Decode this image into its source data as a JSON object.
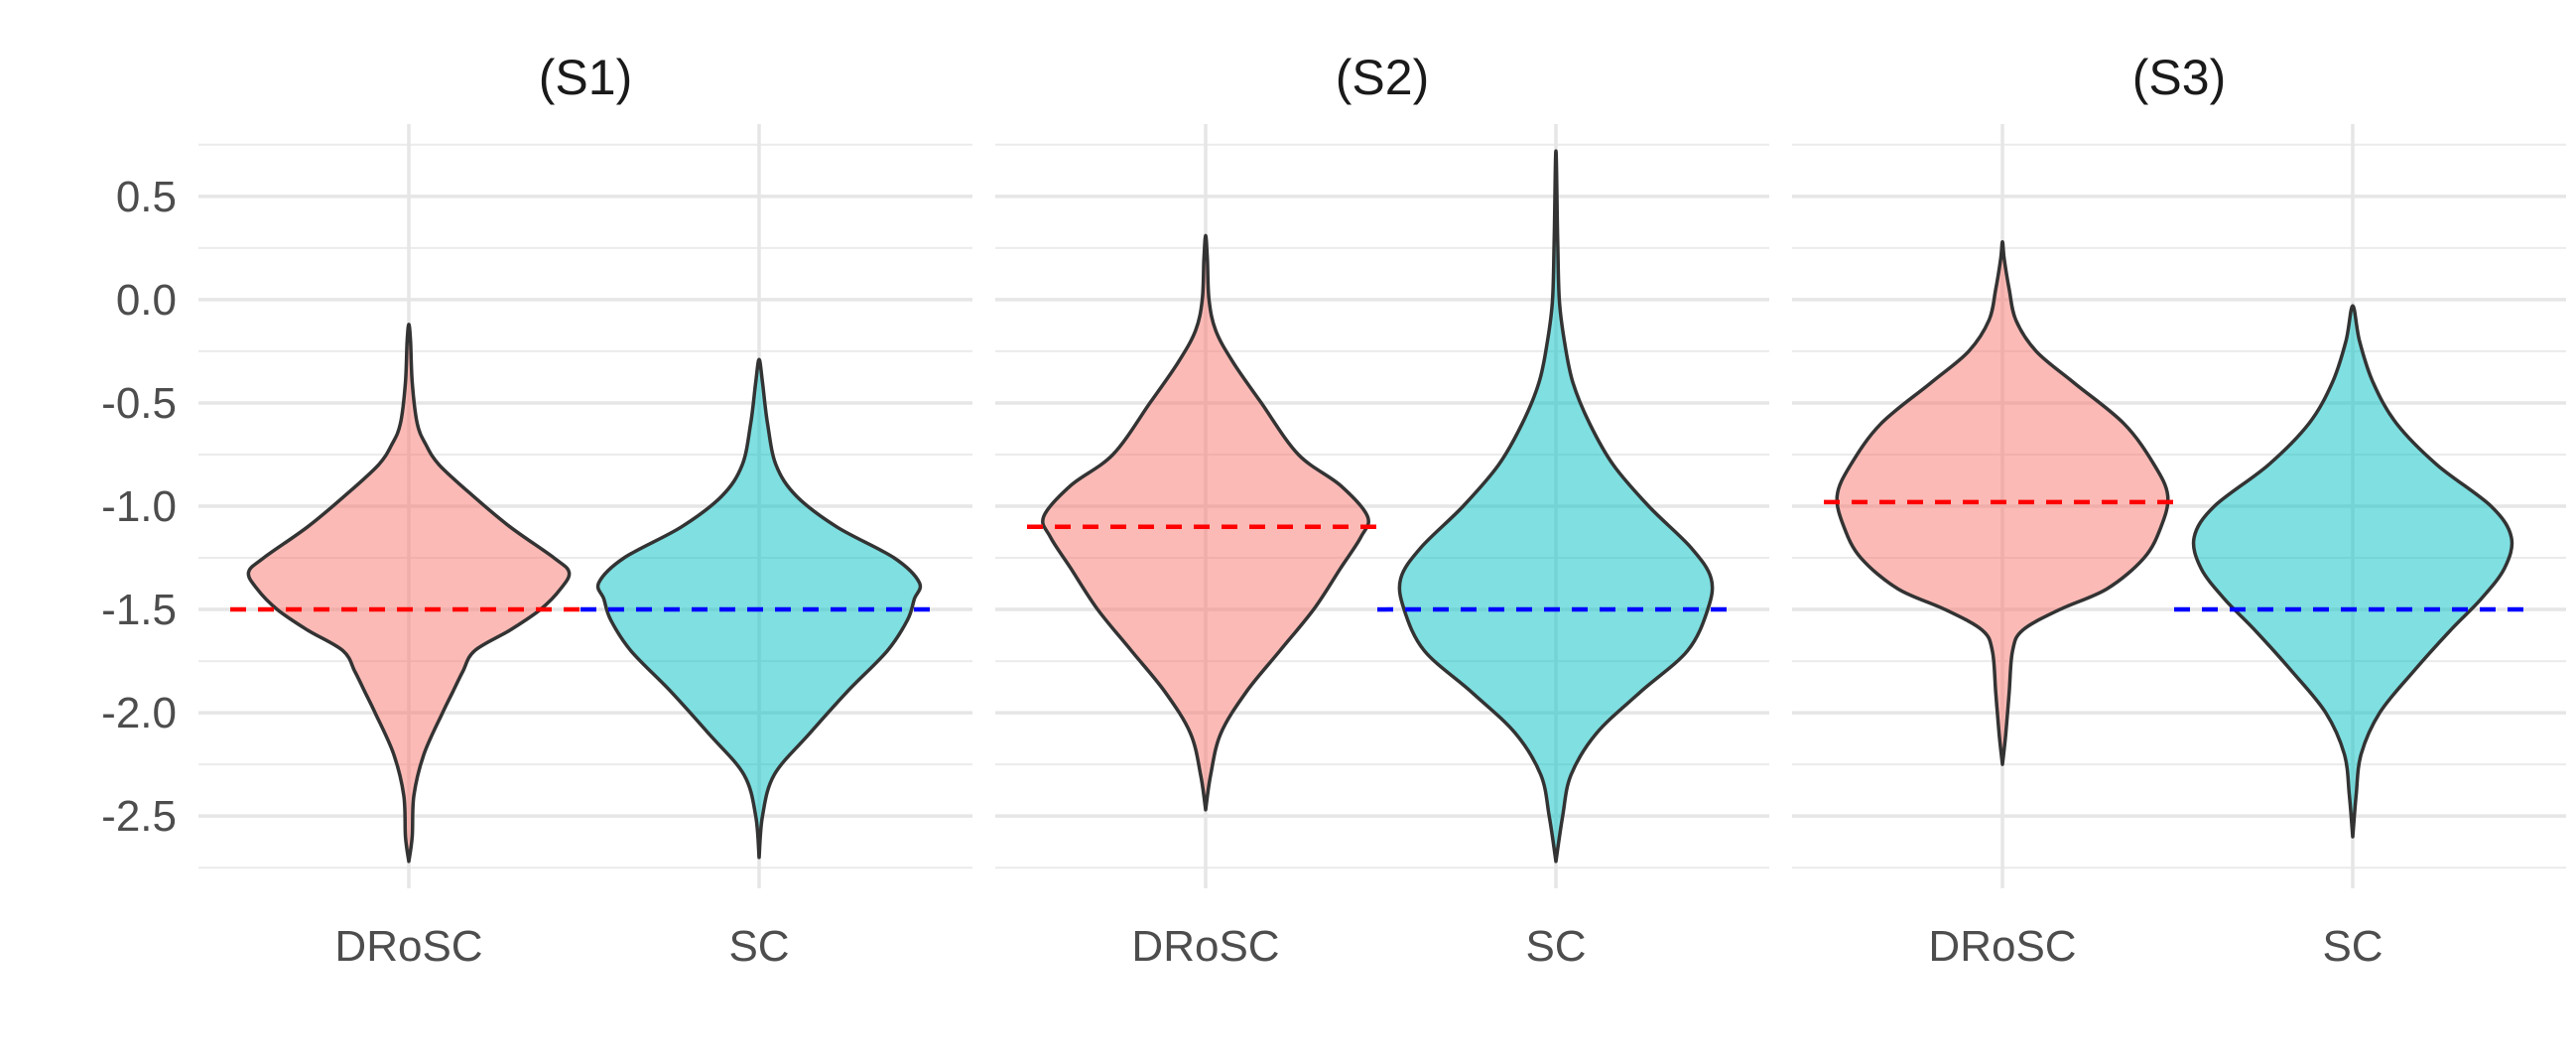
{
  "chart_data": {
    "type": "violin",
    "ylim": [
      -2.85,
      0.85
    ],
    "y_ticks": [
      0.5,
      0.0,
      -0.5,
      -1.0,
      -1.5,
      -2.0,
      -2.5
    ],
    "y_tick_labels": [
      "0.5",
      "0.0",
      "-0.5",
      "-1.0",
      "-1.5",
      "-2.0",
      "-2.5"
    ],
    "grid": true,
    "categories": [
      "DRoSC",
      "SC"
    ],
    "colors": {
      "DRoSC_fill": "#F8766D",
      "SC_fill": "#00BFC4",
      "DRoSC_ref_line": "#ff0000",
      "SC_ref_line": "#0000ff",
      "outline": "#333333"
    },
    "panels": [
      {
        "title": "(S1)",
        "violins": [
          {
            "category": "DRoSC",
            "ref_line": -1.5,
            "profile": [
              [
                -2.72,
                0.0
              ],
              [
                -2.6,
                0.02
              ],
              [
                -2.4,
                0.03
              ],
              [
                -2.2,
                0.09
              ],
              [
                -2.0,
                0.2
              ],
              [
                -1.9,
                0.26
              ],
              [
                -1.8,
                0.32
              ],
              [
                -1.7,
                0.39
              ],
              [
                -1.6,
                0.6
              ],
              [
                -1.5,
                0.78
              ],
              [
                -1.4,
                0.9
              ],
              [
                -1.32,
                0.95
              ],
              [
                -1.25,
                0.86
              ],
              [
                -1.1,
                0.6
              ],
              [
                -0.95,
                0.38
              ],
              [
                -0.8,
                0.18
              ],
              [
                -0.7,
                0.1
              ],
              [
                -0.6,
                0.05
              ],
              [
                -0.4,
                0.02
              ],
              [
                -0.2,
                0.01
              ],
              [
                -0.12,
                0.0
              ]
            ]
          },
          {
            "category": "SC",
            "ref_line": -1.5,
            "profile": [
              [
                -2.7,
                0.0
              ],
              [
                -2.5,
                0.02
              ],
              [
                -2.3,
                0.09
              ],
              [
                -2.1,
                0.3
              ],
              [
                -1.9,
                0.52
              ],
              [
                -1.7,
                0.76
              ],
              [
                -1.55,
                0.88
              ],
              [
                -1.45,
                0.92
              ],
              [
                -1.37,
                0.95
              ],
              [
                -1.25,
                0.8
              ],
              [
                -1.1,
                0.46
              ],
              [
                -0.95,
                0.22
              ],
              [
                -0.8,
                0.1
              ],
              [
                -0.6,
                0.05
              ],
              [
                -0.4,
                0.02
              ],
              [
                -0.29,
                0.0
              ]
            ]
          }
        ]
      },
      {
        "title": "(S2)",
        "violins": [
          {
            "category": "DRoSC",
            "ref_line": -1.1,
            "profile": [
              [
                -2.47,
                0.0
              ],
              [
                -2.3,
                0.03
              ],
              [
                -2.1,
                0.09
              ],
              [
                -1.9,
                0.24
              ],
              [
                -1.7,
                0.44
              ],
              [
                -1.5,
                0.64
              ],
              [
                -1.3,
                0.8
              ],
              [
                -1.15,
                0.92
              ],
              [
                -1.05,
                0.96
              ],
              [
                -0.9,
                0.8
              ],
              [
                -0.75,
                0.55
              ],
              [
                -0.5,
                0.33
              ],
              [
                -0.3,
                0.16
              ],
              [
                -0.15,
                0.06
              ],
              [
                0.0,
                0.02
              ],
              [
                0.2,
                0.01
              ],
              [
                0.31,
                0.0
              ]
            ]
          },
          {
            "category": "SC",
            "ref_line": -1.5,
            "profile": [
              [
                -2.72,
                0.0
              ],
              [
                -2.5,
                0.04
              ],
              [
                -2.3,
                0.09
              ],
              [
                -2.1,
                0.24
              ],
              [
                -1.9,
                0.5
              ],
              [
                -1.7,
                0.78
              ],
              [
                -1.5,
                0.9
              ],
              [
                -1.35,
                0.92
              ],
              [
                -1.2,
                0.8
              ],
              [
                -1.0,
                0.55
              ],
              [
                -0.8,
                0.34
              ],
              [
                -0.6,
                0.2
              ],
              [
                -0.4,
                0.1
              ],
              [
                -0.2,
                0.05
              ],
              [
                0.0,
                0.02
              ],
              [
                0.3,
                0.01
              ],
              [
                0.72,
                0.0
              ]
            ]
          }
        ]
      },
      {
        "title": "(S3)",
        "violins": [
          {
            "category": "DRoSC",
            "ref_line": -0.98,
            "profile": [
              [
                -2.25,
                0.0
              ],
              [
                -2.1,
                0.02
              ],
              [
                -1.9,
                0.04
              ],
              [
                -1.7,
                0.06
              ],
              [
                -1.6,
                0.12
              ],
              [
                -1.5,
                0.34
              ],
              [
                -1.4,
                0.62
              ],
              [
                -1.25,
                0.84
              ],
              [
                -1.1,
                0.94
              ],
              [
                -0.95,
                0.98
              ],
              [
                -0.8,
                0.9
              ],
              [
                -0.6,
                0.72
              ],
              [
                -0.4,
                0.42
              ],
              [
                -0.25,
                0.2
              ],
              [
                -0.1,
                0.08
              ],
              [
                0.05,
                0.04
              ],
              [
                0.2,
                0.01
              ],
              [
                0.28,
                0.0
              ]
            ]
          },
          {
            "category": "SC",
            "ref_line": -1.5,
            "profile": [
              [
                -2.6,
                0.0
              ],
              [
                -2.4,
                0.02
              ],
              [
                -2.2,
                0.05
              ],
              [
                -2.0,
                0.16
              ],
              [
                -1.8,
                0.36
              ],
              [
                -1.6,
                0.58
              ],
              [
                -1.45,
                0.76
              ],
              [
                -1.3,
                0.9
              ],
              [
                -1.15,
                0.94
              ],
              [
                -1.0,
                0.82
              ],
              [
                -0.8,
                0.5
              ],
              [
                -0.6,
                0.26
              ],
              [
                -0.4,
                0.12
              ],
              [
                -0.2,
                0.04
              ],
              [
                -0.03,
                0.0
              ]
            ]
          }
        ]
      }
    ]
  }
}
